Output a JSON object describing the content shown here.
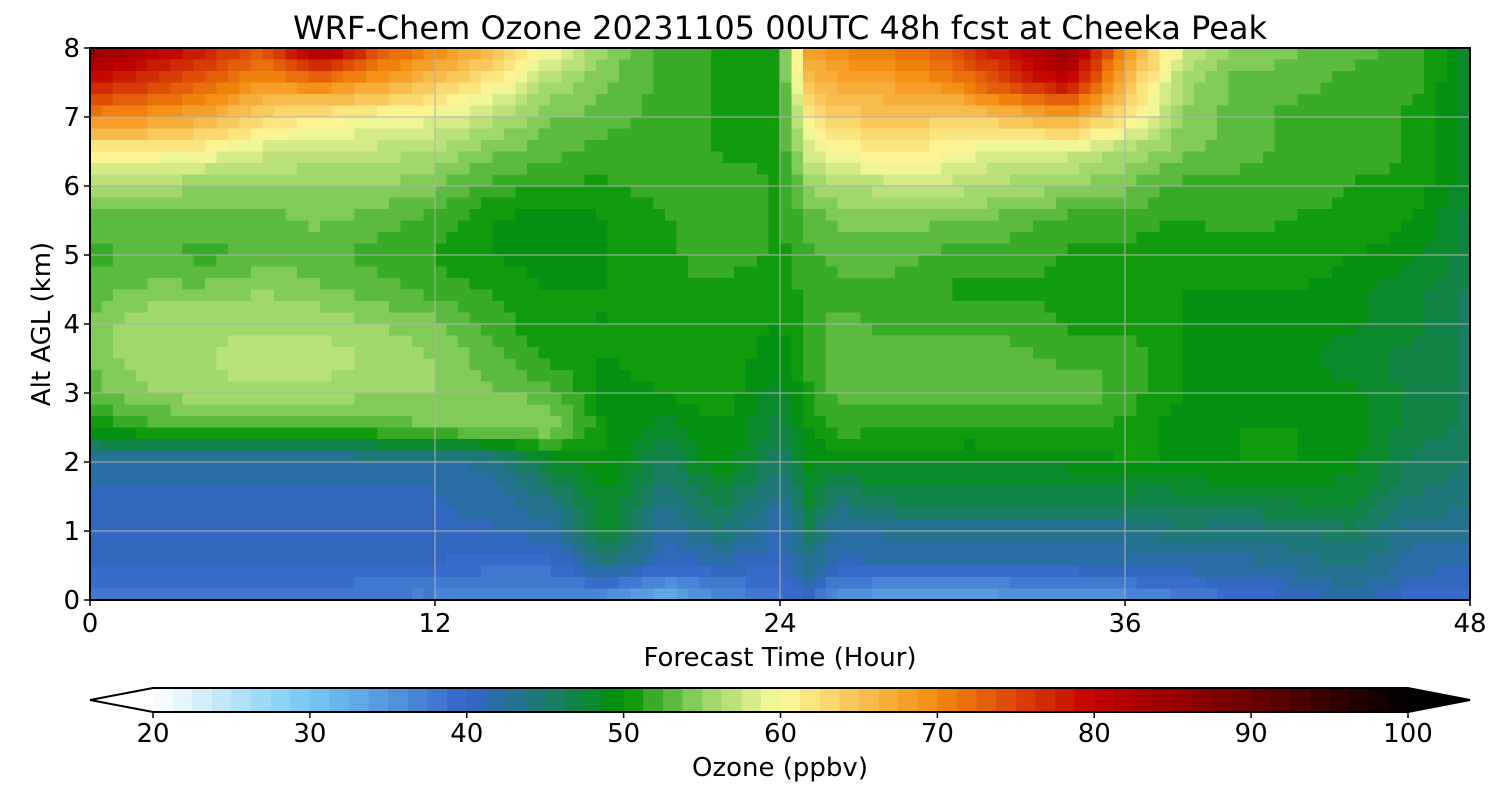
{
  "chart_data": {
    "type": "heatmap",
    "title": "WRF-Chem Ozone  20231105 00UTC 48h fcst at Cheeka Peak",
    "xlabel": "Forecast Time (Hour)",
    "ylabel": "Alt AGL (km)",
    "xlim": [
      0,
      48
    ],
    "ylim": [
      0,
      8
    ],
    "x_ticks": [
      "0",
      "12",
      "24",
      "36",
      "48"
    ],
    "y_ticks": [
      "0",
      "1",
      "2",
      "3",
      "4",
      "5",
      "6",
      "7",
      "8"
    ],
    "grid": true,
    "x": [
      0,
      2,
      4,
      6,
      8,
      10,
      12,
      14,
      16,
      18,
      20,
      22,
      24,
      25,
      26,
      28,
      30,
      32,
      34,
      36,
      38,
      40,
      42,
      44,
      46,
      48
    ],
    "y": [
      0,
      0.5,
      1,
      1.5,
      2,
      2.5,
      3,
      3.5,
      4,
      4.5,
      5,
      5.5,
      6,
      6.5,
      7,
      7.5,
      8
    ],
    "z_units": "ppbv",
    "z": [
      [
        38,
        38,
        38,
        38,
        38,
        37,
        37,
        36,
        36,
        35,
        32,
        36,
        38,
        40,
        35,
        33,
        33,
        34,
        34,
        35,
        37,
        39,
        40,
        42,
        39,
        39
      ],
      [
        40,
        40,
        40,
        40,
        40,
        40,
        40,
        39,
        39,
        44,
        40,
        41,
        40,
        43,
        41,
        41,
        41,
        41,
        41,
        42,
        42,
        42,
        43,
        44,
        42,
        41
      ],
      [
        41,
        41,
        41,
        41,
        41,
        41,
        41,
        41,
        42,
        48,
        42,
        45,
        41,
        46,
        42,
        43,
        43,
        43,
        43,
        43,
        45,
        44,
        45,
        46,
        43,
        43
      ],
      [
        41,
        41,
        41,
        41,
        41,
        41,
        41,
        42,
        44,
        49,
        44,
        47,
        43,
        48,
        45,
        47,
        47,
        47,
        47,
        47,
        47,
        48,
        48,
        48,
        45,
        44
      ],
      [
        42,
        42,
        42,
        42,
        42,
        42,
        42,
        43,
        48,
        50,
        46,
        50,
        45,
        49,
        49,
        49,
        49,
        49,
        49,
        50,
        50,
        50,
        50,
        49,
        46,
        45
      ],
      [
        50,
        52,
        52,
        52,
        52,
        53,
        54,
        55,
        55,
        50,
        48,
        50,
        47,
        50,
        52,
        51,
        51,
        51,
        51,
        51,
        49,
        50,
        50,
        49,
        47,
        46
      ],
      [
        53,
        55,
        56,
        56,
        56,
        55,
        55,
        54,
        53,
        49,
        50,
        51,
        48,
        51,
        53,
        53,
        53,
        53,
        54,
        52,
        50,
        50,
        49,
        49,
        47,
        46
      ],
      [
        54,
        56,
        56,
        57,
        57,
        56,
        55,
        53,
        51,
        50,
        51,
        51,
        49,
        52,
        53,
        53,
        53,
        53,
        52,
        52,
        50,
        49,
        49,
        48,
        47,
        46
      ],
      [
        54,
        56,
        56,
        56,
        56,
        55,
        54,
        52,
        50,
        50,
        51,
        51,
        50,
        52,
        53,
        52,
        52,
        52,
        51,
        51,
        50,
        49,
        49,
        49,
        48,
        46
      ],
      [
        53,
        54,
        54,
        55,
        54,
        53,
        52,
        51,
        50,
        50,
        51,
        51,
        50,
        52,
        52,
        52,
        51,
        51,
        51,
        51,
        50,
        50,
        50,
        49,
        48,
        46
      ],
      [
        52,
        53,
        52,
        53,
        53,
        52,
        51,
        50,
        49,
        50,
        51,
        52,
        51,
        52,
        53,
        53,
        52,
        52,
        51,
        51,
        50,
        50,
        51,
        50,
        49,
        47
      ],
      [
        53,
        53,
        53,
        53,
        54,
        53,
        52,
        50,
        49,
        50,
        51,
        52,
        51,
        53,
        54,
        54,
        54,
        53,
        52,
        52,
        51,
        52,
        51,
        51,
        50,
        47
      ],
      [
        56,
        56,
        55,
        55,
        55,
        55,
        54,
        52,
        51,
        51,
        52,
        52,
        51,
        55,
        56,
        57,
        57,
        56,
        55,
        54,
        52,
        52,
        52,
        51,
        51,
        48
      ],
      [
        61,
        61,
        60,
        58,
        57,
        57,
        56,
        54,
        53,
        52,
        52,
        51,
        51,
        58,
        60,
        62,
        60,
        58,
        58,
        56,
        54,
        53,
        52,
        52,
        51,
        48
      ],
      [
        70,
        69,
        67,
        63,
        61,
        60,
        59,
        57,
        54,
        53,
        52,
        51,
        51,
        61,
        64,
        65,
        64,
        65,
        68,
        62,
        55,
        53,
        52,
        52,
        51,
        48
      ],
      [
        79,
        76,
        73,
        69,
        71,
        68,
        65,
        61,
        56,
        54,
        52,
        51,
        51,
        65,
        67,
        68,
        70,
        76,
        80,
        66,
        56,
        53,
        53,
        52,
        52,
        48
      ],
      [
        86,
        82,
        78,
        74,
        85,
        75,
        70,
        66,
        60,
        55,
        52,
        51,
        51,
        68,
        70,
        72,
        74,
        80,
        86,
        70,
        58,
        55,
        54,
        53,
        52,
        48
      ]
    ],
    "colorbar": {
      "label": "Ozone  (ppbv)",
      "min": 20,
      "max": 100,
      "step": 1.25,
      "extend": "both",
      "ticks": [
        "20",
        "30",
        "40",
        "50",
        "60",
        "70",
        "80",
        "90",
        "100"
      ],
      "stops": [
        {
          "v": 20,
          "c": "#ffffff"
        },
        {
          "v": 30,
          "c": "#74c8f4"
        },
        {
          "v": 40,
          "c": "#3565c8"
        },
        {
          "v": 45,
          "c": "#1b7a6e"
        },
        {
          "v": 50,
          "c": "#019302"
        },
        {
          "v": 55,
          "c": "#93d364"
        },
        {
          "v": 60,
          "c": "#fdfa9c"
        },
        {
          "v": 70,
          "c": "#f38a0d"
        },
        {
          "v": 80,
          "c": "#c20000"
        },
        {
          "v": 90,
          "c": "#6c0000"
        },
        {
          "v": 100,
          "c": "#000000"
        }
      ]
    }
  }
}
